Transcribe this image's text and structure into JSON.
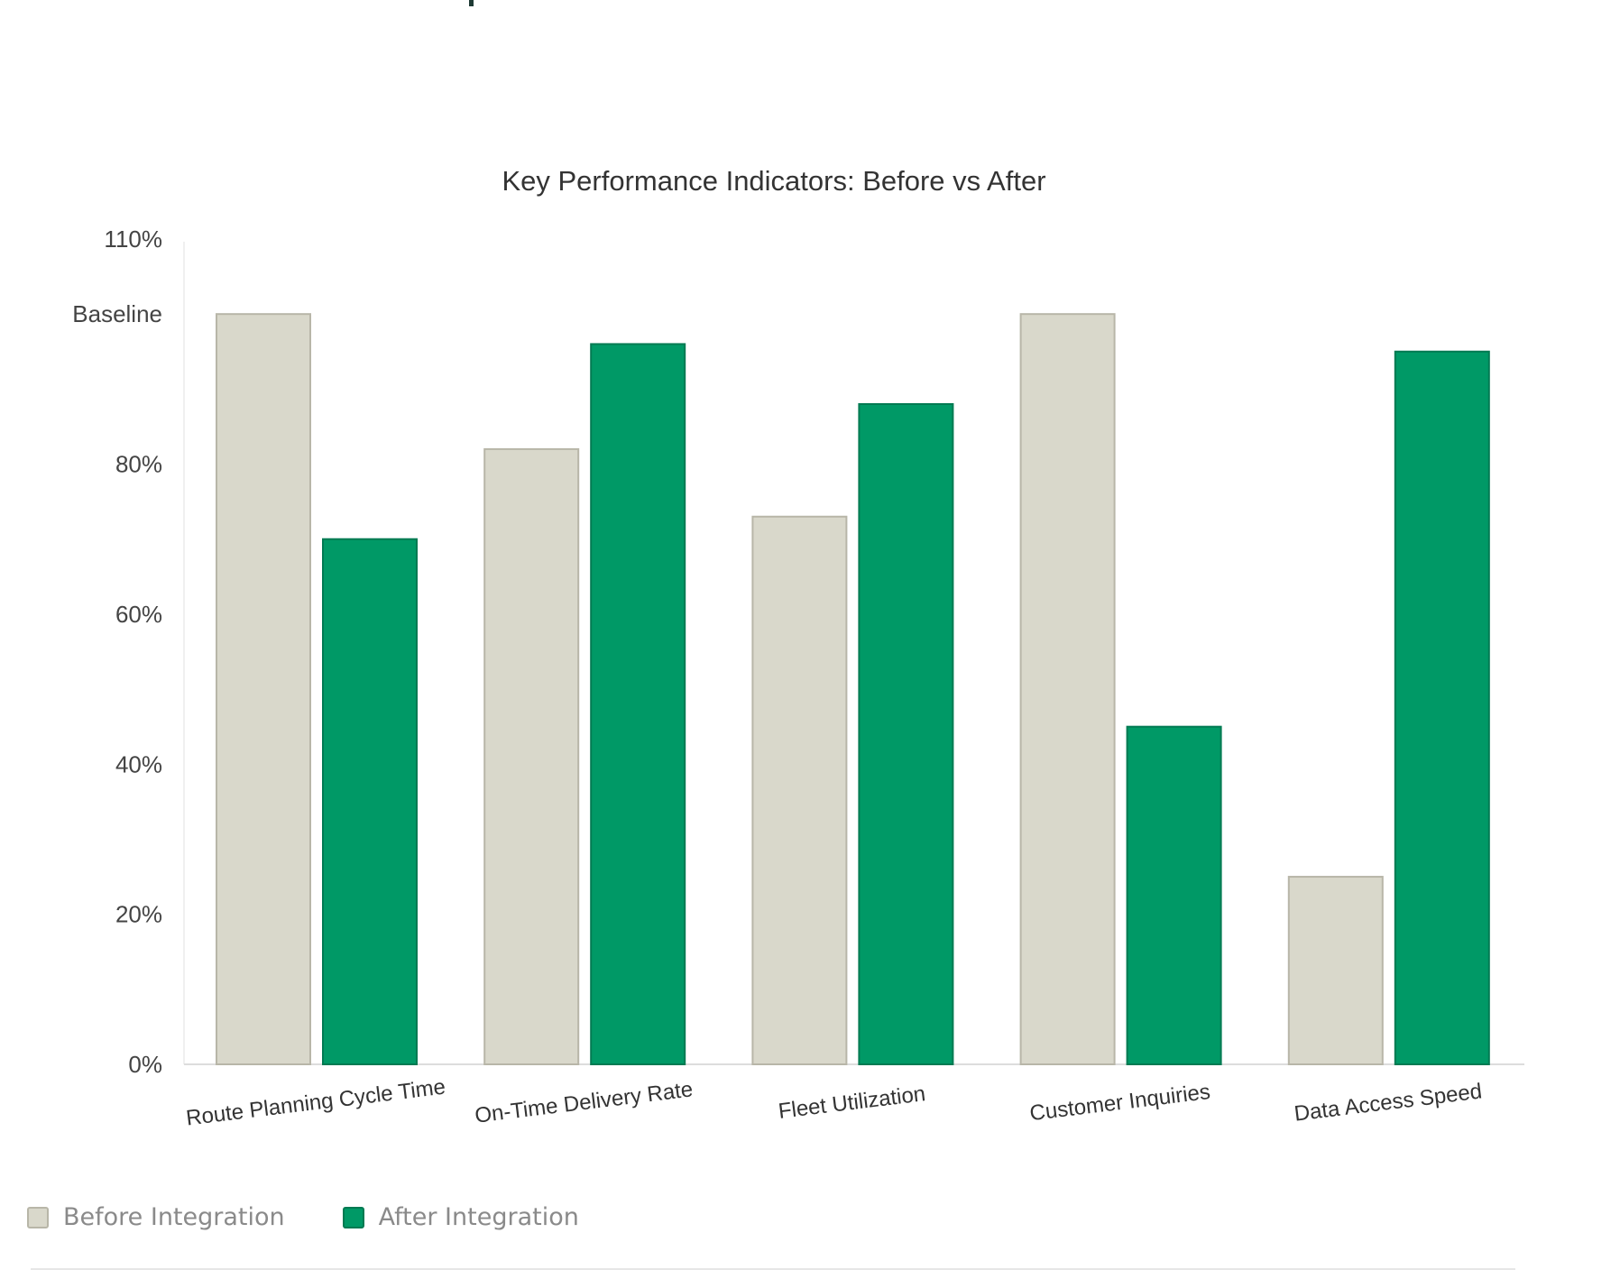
{
  "chart_data": {
    "type": "bar",
    "title": "Key Performance Indicators: Before vs After",
    "xlabel": "",
    "ylabel": "",
    "ylim": [
      0,
      110
    ],
    "y_ticks": [
      {
        "value": 0,
        "label": "0%"
      },
      {
        "value": 20,
        "label": "20%"
      },
      {
        "value": 40,
        "label": "40%"
      },
      {
        "value": 60,
        "label": "60%"
      },
      {
        "value": 80,
        "label": "80%"
      },
      {
        "value": 100,
        "label": "Baseline"
      },
      {
        "value": 110,
        "label": "110%"
      }
    ],
    "categories": [
      "Route Planning Cycle Time",
      "On-Time Delivery Rate",
      "Fleet Utilization",
      "Customer Inquiries",
      "Data Access Speed"
    ],
    "series": [
      {
        "name": "Before Integration",
        "color": "#d9d8cb",
        "values": [
          100,
          82,
          73,
          100,
          25
        ]
      },
      {
        "name": "After Integration",
        "color": "#009966",
        "values": [
          70,
          96,
          88,
          45,
          95
        ]
      }
    ],
    "grid": false,
    "legend_position": "bottom-left"
  }
}
